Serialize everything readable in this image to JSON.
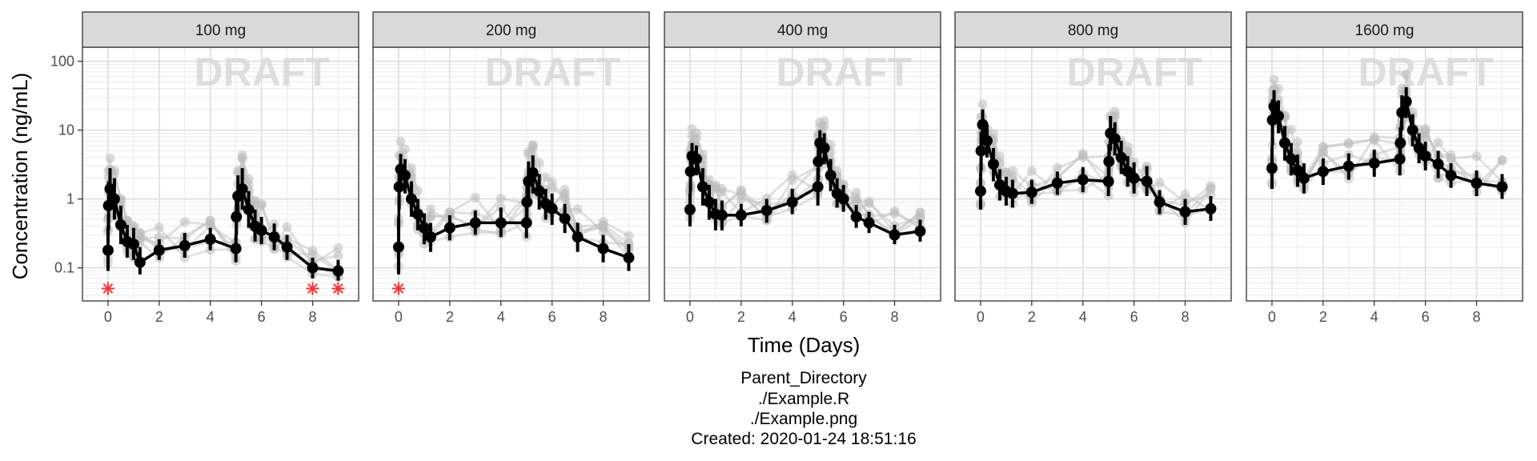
{
  "chart_data": {
    "type": "line",
    "layout": "faceted",
    "xlabel": "Time (Days)",
    "ylabel": "Concentration (ng/mL)",
    "x_ticks": [
      0,
      2,
      4,
      6,
      8
    ],
    "xlim": [
      -1,
      9.8
    ],
    "y_scale": "log10",
    "ylim": [
      0.033,
      160
    ],
    "y_tick_values": [
      0.1,
      1,
      10,
      100
    ],
    "y_tick_labels": [
      "0.1",
      "1",
      "10",
      "100"
    ],
    "watermark": "DRAFT",
    "grid": true,
    "legend": "none",
    "colors": {
      "summary": "#000000",
      "individual": "#bdbdbd",
      "blq_marker": "#ff3030",
      "strip_fill": "#d9d9d9",
      "grid": "#dedede"
    },
    "facets": [
      {
        "label": "100 mg",
        "summary": [
          {
            "x": 0,
            "y": 0.18,
            "lo": 0.09,
            "hi": 0.4
          },
          {
            "x": 0.02,
            "y": 0.8,
            "lo": 0.35,
            "hi": 1.8
          },
          {
            "x": 0.08,
            "y": 1.4,
            "lo": 0.7,
            "hi": 2.8
          },
          {
            "x": 0.25,
            "y": 1.0,
            "lo": 0.5,
            "hi": 2.0
          },
          {
            "x": 0.5,
            "y": 0.42,
            "lo": 0.22,
            "hi": 0.8
          },
          {
            "x": 0.75,
            "y": 0.24,
            "lo": 0.14,
            "hi": 0.42
          },
          {
            "x": 1.0,
            "y": 0.22,
            "lo": 0.13,
            "hi": 0.38
          },
          {
            "x": 1.25,
            "y": 0.12,
            "lo": 0.08,
            "hi": 0.2
          },
          {
            "x": 2,
            "y": 0.18,
            "lo": 0.13,
            "hi": 0.26
          },
          {
            "x": 3,
            "y": 0.21,
            "lo": 0.14,
            "hi": 0.32
          },
          {
            "x": 4,
            "y": 0.26,
            "lo": 0.18,
            "hi": 0.38
          },
          {
            "x": 5,
            "y": 0.19,
            "lo": 0.12,
            "hi": 0.3
          },
          {
            "x": 5.02,
            "y": 0.55,
            "lo": 0.3,
            "hi": 1.0
          },
          {
            "x": 5.08,
            "y": 1.1,
            "lo": 0.55,
            "hi": 2.2
          },
          {
            "x": 5.25,
            "y": 1.4,
            "lo": 0.7,
            "hi": 2.8
          },
          {
            "x": 5.5,
            "y": 0.7,
            "lo": 0.38,
            "hi": 1.3
          },
          {
            "x": 5.75,
            "y": 0.4,
            "lo": 0.24,
            "hi": 0.7
          },
          {
            "x": 6,
            "y": 0.35,
            "lo": 0.22,
            "hi": 0.55
          },
          {
            "x": 6.5,
            "y": 0.28,
            "lo": 0.18,
            "hi": 0.44
          },
          {
            "x": 7,
            "y": 0.2,
            "lo": 0.13,
            "hi": 0.3
          },
          {
            "x": 8,
            "y": 0.1,
            "lo": 0.07,
            "hi": 0.14
          },
          {
            "x": 9,
            "y": 0.09,
            "lo": 0.065,
            "hi": 0.13
          }
        ],
        "blq": [
          {
            "x": 0,
            "y": 0.05
          },
          {
            "x": 8,
            "y": 0.05
          },
          {
            "x": 9,
            "y": 0.05
          }
        ]
      },
      {
        "label": "200 mg",
        "summary": [
          {
            "x": 0,
            "y": 0.2,
            "lo": 0.08,
            "hi": 0.55
          },
          {
            "x": 0.02,
            "y": 1.5,
            "lo": 0.7,
            "hi": 3.0
          },
          {
            "x": 0.08,
            "y": 2.7,
            "lo": 1.4,
            "hi": 4.5
          },
          {
            "x": 0.25,
            "y": 2.2,
            "lo": 1.2,
            "hi": 3.8
          },
          {
            "x": 0.5,
            "y": 1.0,
            "lo": 0.55,
            "hi": 1.8
          },
          {
            "x": 0.75,
            "y": 0.6,
            "lo": 0.35,
            "hi": 1.0
          },
          {
            "x": 1.0,
            "y": 0.38,
            "lo": 0.22,
            "hi": 0.62
          },
          {
            "x": 1.25,
            "y": 0.28,
            "lo": 0.17,
            "hi": 0.45
          },
          {
            "x": 2,
            "y": 0.38,
            "lo": 0.25,
            "hi": 0.58
          },
          {
            "x": 3,
            "y": 0.45,
            "lo": 0.3,
            "hi": 0.68
          },
          {
            "x": 4,
            "y": 0.45,
            "lo": 0.28,
            "hi": 0.75
          },
          {
            "x": 5,
            "y": 0.45,
            "lo": 0.27,
            "hi": 0.75
          },
          {
            "x": 5.02,
            "y": 0.9,
            "lo": 0.5,
            "hi": 1.7
          },
          {
            "x": 5.08,
            "y": 1.8,
            "lo": 0.9,
            "hi": 3.5
          },
          {
            "x": 5.25,
            "y": 2.4,
            "lo": 1.2,
            "hi": 4.3
          },
          {
            "x": 5.5,
            "y": 1.3,
            "lo": 0.7,
            "hi": 2.3
          },
          {
            "x": 5.75,
            "y": 0.85,
            "lo": 0.5,
            "hi": 1.4
          },
          {
            "x": 6,
            "y": 0.72,
            "lo": 0.42,
            "hi": 1.2
          },
          {
            "x": 6.5,
            "y": 0.52,
            "lo": 0.32,
            "hi": 0.85
          },
          {
            "x": 7,
            "y": 0.28,
            "lo": 0.17,
            "hi": 0.45
          },
          {
            "x": 8,
            "y": 0.19,
            "lo": 0.12,
            "hi": 0.3
          },
          {
            "x": 9,
            "y": 0.14,
            "lo": 0.09,
            "hi": 0.22
          }
        ],
        "blq": [
          {
            "x": 0,
            "y": 0.05
          }
        ]
      },
      {
        "label": "400 mg",
        "summary": [
          {
            "x": 0,
            "y": 0.7,
            "lo": 0.4,
            "hi": 1.2
          },
          {
            "x": 0.02,
            "y": 2.5,
            "lo": 1.3,
            "hi": 4.5
          },
          {
            "x": 0.08,
            "y": 4.2,
            "lo": 2.4,
            "hi": 6.5
          },
          {
            "x": 0.25,
            "y": 3.8,
            "lo": 2.2,
            "hi": 6.0
          },
          {
            "x": 0.5,
            "y": 1.5,
            "lo": 0.8,
            "hi": 2.8
          },
          {
            "x": 0.75,
            "y": 0.9,
            "lo": 0.5,
            "hi": 1.6
          },
          {
            "x": 1.0,
            "y": 0.6,
            "lo": 0.35,
            "hi": 1.0
          },
          {
            "x": 1.25,
            "y": 0.58,
            "lo": 0.35,
            "hi": 0.95
          },
          {
            "x": 2,
            "y": 0.58,
            "lo": 0.4,
            "hi": 0.85
          },
          {
            "x": 3,
            "y": 0.68,
            "lo": 0.45,
            "hi": 1.0
          },
          {
            "x": 4,
            "y": 0.9,
            "lo": 0.6,
            "hi": 1.4
          },
          {
            "x": 5,
            "y": 1.5,
            "lo": 0.8,
            "hi": 2.8
          },
          {
            "x": 5.02,
            "y": 3.5,
            "lo": 1.9,
            "hi": 6.2
          },
          {
            "x": 5.08,
            "y": 6.5,
            "lo": 3.8,
            "hi": 10.0
          },
          {
            "x": 5.25,
            "y": 5.5,
            "lo": 3.2,
            "hi": 9.0
          },
          {
            "x": 5.5,
            "y": 2.2,
            "lo": 1.3,
            "hi": 3.8
          },
          {
            "x": 5.75,
            "y": 1.2,
            "lo": 0.75,
            "hi": 2.0
          },
          {
            "x": 6,
            "y": 1.0,
            "lo": 0.65,
            "hi": 1.6
          },
          {
            "x": 6.5,
            "y": 0.55,
            "lo": 0.38,
            "hi": 0.82
          },
          {
            "x": 7,
            "y": 0.45,
            "lo": 0.32,
            "hi": 0.65
          },
          {
            "x": 8,
            "y": 0.3,
            "lo": 0.22,
            "hi": 0.42
          },
          {
            "x": 9,
            "y": 0.34,
            "lo": 0.24,
            "hi": 0.5
          }
        ],
        "blq": []
      },
      {
        "label": "800 mg",
        "summary": [
          {
            "x": 0,
            "y": 1.3,
            "lo": 0.7,
            "hi": 2.4
          },
          {
            "x": 0.02,
            "y": 5.0,
            "lo": 2.6,
            "hi": 9.5
          },
          {
            "x": 0.08,
            "y": 12.0,
            "lo": 6.5,
            "hi": 20.0
          },
          {
            "x": 0.25,
            "y": 7.0,
            "lo": 4.0,
            "hi": 12.0
          },
          {
            "x": 0.5,
            "y": 3.2,
            "lo": 1.8,
            "hi": 5.5
          },
          {
            "x": 0.75,
            "y": 1.6,
            "lo": 0.95,
            "hi": 2.7
          },
          {
            "x": 1.0,
            "y": 1.3,
            "lo": 0.8,
            "hi": 2.1
          },
          {
            "x": 1.25,
            "y": 1.2,
            "lo": 0.75,
            "hi": 1.9
          },
          {
            "x": 2,
            "y": 1.25,
            "lo": 0.85,
            "hi": 1.9
          },
          {
            "x": 3,
            "y": 1.7,
            "lo": 1.15,
            "hi": 2.5
          },
          {
            "x": 4,
            "y": 1.9,
            "lo": 1.25,
            "hi": 2.9
          },
          {
            "x": 5,
            "y": 1.8,
            "lo": 1.1,
            "hi": 3.0
          },
          {
            "x": 5.02,
            "y": 3.5,
            "lo": 2.0,
            "hi": 6.2
          },
          {
            "x": 5.08,
            "y": 9.0,
            "lo": 5.0,
            "hi": 16.0
          },
          {
            "x": 5.25,
            "y": 7.5,
            "lo": 4.3,
            "hi": 13.0
          },
          {
            "x": 5.5,
            "y": 4.0,
            "lo": 2.3,
            "hi": 7.0
          },
          {
            "x": 5.75,
            "y": 2.5,
            "lo": 1.5,
            "hi": 4.2
          },
          {
            "x": 6,
            "y": 2.0,
            "lo": 1.2,
            "hi": 3.4
          },
          {
            "x": 6.5,
            "y": 1.8,
            "lo": 1.1,
            "hi": 3.0
          },
          {
            "x": 7,
            "y": 0.9,
            "lo": 0.6,
            "hi": 1.35
          },
          {
            "x": 8,
            "y": 0.65,
            "lo": 0.42,
            "hi": 1.0
          },
          {
            "x": 9,
            "y": 0.72,
            "lo": 0.48,
            "hi": 1.1
          }
        ],
        "blq": []
      },
      {
        "label": "1600 mg",
        "summary": [
          {
            "x": 0,
            "y": 2.8,
            "lo": 1.4,
            "hi": 5.5
          },
          {
            "x": 0.02,
            "y": 14.0,
            "lo": 6.0,
            "hi": 28.0
          },
          {
            "x": 0.08,
            "y": 22.0,
            "lo": 12.0,
            "hi": 38.0
          },
          {
            "x": 0.25,
            "y": 16.0,
            "lo": 9.0,
            "hi": 27.0
          },
          {
            "x": 0.5,
            "y": 6.5,
            "lo": 3.6,
            "hi": 11.5
          },
          {
            "x": 0.75,
            "y": 3.8,
            "lo": 2.2,
            "hi": 6.5
          },
          {
            "x": 1.0,
            "y": 2.6,
            "lo": 1.5,
            "hi": 4.4
          },
          {
            "x": 1.25,
            "y": 2.0,
            "lo": 1.2,
            "hi": 3.3
          },
          {
            "x": 2,
            "y": 2.5,
            "lo": 1.6,
            "hi": 3.9
          },
          {
            "x": 3,
            "y": 3.0,
            "lo": 1.9,
            "hi": 4.6
          },
          {
            "x": 4,
            "y": 3.3,
            "lo": 2.1,
            "hi": 5.2
          },
          {
            "x": 5,
            "y": 3.8,
            "lo": 2.2,
            "hi": 6.5
          },
          {
            "x": 5.02,
            "y": 6.5,
            "lo": 3.7,
            "hi": 11.0
          },
          {
            "x": 5.08,
            "y": 18.0,
            "lo": 10.0,
            "hi": 32.0
          },
          {
            "x": 5.25,
            "y": 26.0,
            "lo": 15.0,
            "hi": 42.0
          },
          {
            "x": 5.5,
            "y": 10.0,
            "lo": 5.8,
            "hi": 17.0
          },
          {
            "x": 5.75,
            "y": 5.5,
            "lo": 3.3,
            "hi": 9.0
          },
          {
            "x": 6,
            "y": 4.2,
            "lo": 2.6,
            "hi": 6.8
          },
          {
            "x": 6.5,
            "y": 3.2,
            "lo": 2.0,
            "hi": 5.0
          },
          {
            "x": 7,
            "y": 2.2,
            "lo": 1.45,
            "hi": 3.3
          },
          {
            "x": 8,
            "y": 1.7,
            "lo": 1.1,
            "hi": 2.6
          },
          {
            "x": 9,
            "y": 1.5,
            "lo": 1.0,
            "hi": 2.3
          }
        ],
        "blq": []
      }
    ]
  },
  "footer": {
    "lines": [
      "Parent_Directory",
      "./Example.R",
      "./Example.png",
      "Created: 2020-01-24 18:51:16"
    ]
  }
}
